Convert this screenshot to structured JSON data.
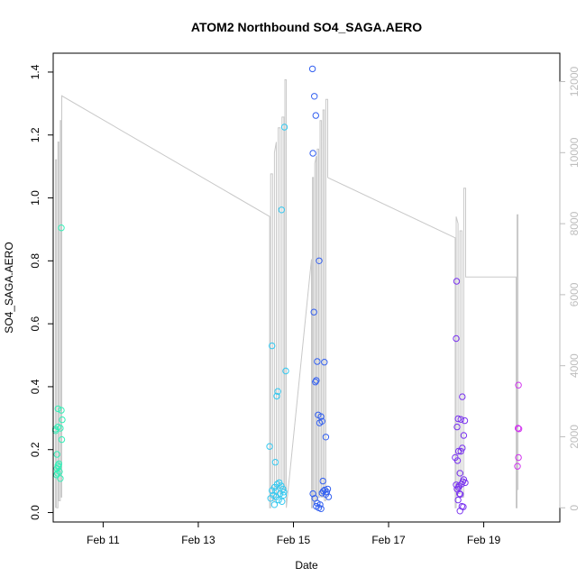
{
  "chart_data": {
    "type": "scatter",
    "title": "ATOM2 Northbound SO4_SAGA.AERO",
    "xlabel": "Date",
    "ylabel": "SO4_SAGA.AERO",
    "x_ticks": [
      "Feb 11",
      "Feb 13",
      "Feb 15",
      "Feb 17",
      "Feb 19"
    ],
    "x_tick_values": [
      10.0,
      12.0,
      14.0,
      16.0,
      18.0
    ],
    "xlim": [
      8.95,
      19.6
    ],
    "ylim": [
      -0.03,
      1.46
    ],
    "y_ticks": [
      0.0,
      0.2,
      0.4,
      0.6,
      0.8,
      1.0,
      1.2,
      1.4
    ],
    "y_tick_labels": [
      "0.0",
      "0.2",
      "0.4",
      "0.6",
      "0.8",
      "1.0",
      "1.2",
      "1.4"
    ],
    "y2lim": [
      -400,
      12800
    ],
    "y2_ticks": [
      0,
      2000,
      4000,
      6000,
      8000,
      10000,
      12000
    ],
    "y2_tick_labels": [
      "0",
      "2000",
      "4000",
      "6000",
      "8000",
      "10000",
      "12000"
    ],
    "grid": false,
    "series": [
      {
        "color": "#33f0b8",
        "points": [
          [
            9.12,
            0.905
          ],
          [
            9.05,
            0.33
          ],
          [
            9.12,
            0.325
          ],
          [
            9.0,
            0.265
          ],
          [
            9.05,
            0.272
          ],
          [
            9.1,
            0.268
          ],
          [
            9.14,
            0.295
          ],
          [
            9.13,
            0.232
          ],
          [
            9.03,
            0.185
          ],
          [
            9.0,
            0.26
          ],
          [
            9.05,
            0.15
          ],
          [
            9.03,
            0.14
          ],
          [
            9.06,
            0.145
          ],
          [
            9.04,
            0.125
          ],
          [
            9.08,
            0.13
          ],
          [
            9.02,
            0.12
          ],
          [
            9.1,
            0.108
          ],
          [
            9.07,
            0.155
          ]
        ]
      },
      {
        "color": "#33c8f0",
        "points": [
          [
            13.81,
            1.225
          ],
          [
            13.75,
            0.962
          ],
          [
            13.55,
            0.53
          ],
          [
            13.84,
            0.45
          ],
          [
            13.67,
            0.385
          ],
          [
            13.65,
            0.37
          ],
          [
            13.5,
            0.21
          ],
          [
            13.62,
            0.16
          ],
          [
            13.55,
            0.07
          ],
          [
            13.6,
            0.08
          ],
          [
            13.66,
            0.09
          ],
          [
            13.7,
            0.095
          ],
          [
            13.74,
            0.085
          ],
          [
            13.78,
            0.075
          ],
          [
            13.8,
            0.065
          ],
          [
            13.58,
            0.055
          ],
          [
            13.64,
            0.05
          ],
          [
            13.52,
            0.045
          ],
          [
            13.69,
            0.04
          ],
          [
            13.72,
            0.06
          ],
          [
            13.76,
            0.035
          ],
          [
            13.6,
            0.025
          ],
          [
            13.79,
            0.055
          ],
          [
            13.63,
            0.068
          ]
        ]
      },
      {
        "color": "#3360f0",
        "points": [
          [
            14.4,
            1.41
          ],
          [
            14.44,
            1.323
          ],
          [
            14.47,
            1.262
          ],
          [
            14.41,
            1.142
          ],
          [
            14.54,
            0.8
          ],
          [
            14.43,
            0.637
          ],
          [
            14.5,
            0.48
          ],
          [
            14.65,
            0.478
          ],
          [
            14.48,
            0.42
          ],
          [
            14.46,
            0.415
          ],
          [
            14.52,
            0.31
          ],
          [
            14.58,
            0.305
          ],
          [
            14.6,
            0.29
          ],
          [
            14.55,
            0.285
          ],
          [
            14.68,
            0.24
          ],
          [
            14.62,
            0.1
          ],
          [
            14.41,
            0.06
          ],
          [
            14.45,
            0.045
          ],
          [
            14.5,
            0.03
          ],
          [
            14.56,
            0.025
          ],
          [
            14.6,
            0.062
          ],
          [
            14.63,
            0.068
          ],
          [
            14.66,
            0.072
          ],
          [
            14.7,
            0.065
          ],
          [
            14.72,
            0.075
          ],
          [
            14.74,
            0.05
          ],
          [
            14.68,
            0.058
          ],
          [
            14.53,
            0.015
          ],
          [
            14.48,
            0.02
          ],
          [
            14.58,
            0.012
          ]
        ]
      },
      {
        "color": "#7a33f0",
        "points": [
          [
            17.43,
            0.735
          ],
          [
            17.42,
            0.553
          ],
          [
            17.55,
            0.368
          ],
          [
            17.46,
            0.298
          ],
          [
            17.52,
            0.296
          ],
          [
            17.6,
            0.292
          ],
          [
            17.44,
            0.272
          ],
          [
            17.58,
            0.245
          ],
          [
            17.55,
            0.205
          ],
          [
            17.47,
            0.195
          ],
          [
            17.52,
            0.195
          ],
          [
            17.4,
            0.175
          ],
          [
            17.45,
            0.165
          ],
          [
            17.5,
            0.125
          ],
          [
            17.58,
            0.105
          ],
          [
            17.61,
            0.095
          ],
          [
            17.56,
            0.098
          ],
          [
            17.42,
            0.088
          ],
          [
            17.48,
            0.085
          ],
          [
            17.53,
            0.09
          ],
          [
            17.44,
            0.075
          ],
          [
            17.49,
            0.06
          ],
          [
            17.51,
            0.058
          ],
          [
            17.46,
            0.04
          ],
          [
            17.54,
            0.02
          ],
          [
            17.57,
            0.018
          ],
          [
            17.5,
            0.005
          ],
          [
            17.47,
            0.08
          ]
        ]
      },
      {
        "color": "#d233f0",
        "points": [
          [
            18.73,
            0.405
          ],
          [
            18.72,
            0.268
          ],
          [
            18.74,
            0.266
          ],
          [
            18.73,
            0.175
          ],
          [
            18.71,
            0.147
          ]
        ]
      }
    ],
    "line2": {
      "color": "#c8c8c8",
      "points": [
        [
          9.0,
          0
        ],
        [
          9.0,
          9800
        ],
        [
          9.02,
          9800
        ],
        [
          9.02,
          0
        ],
        [
          9.05,
          0
        ],
        [
          9.05,
          10300
        ],
        [
          9.07,
          10300
        ],
        [
          9.07,
          200
        ],
        [
          9.1,
          200
        ],
        [
          9.1,
          10900
        ],
        [
          9.12,
          10900
        ],
        [
          9.12,
          300
        ],
        [
          9.13,
          300
        ],
        [
          9.13,
          11600
        ],
        [
          13.5,
          8200
        ],
        [
          13.5,
          0
        ],
        [
          13.52,
          0
        ],
        [
          13.52,
          9400
        ],
        [
          13.56,
          9400
        ],
        [
          13.56,
          200
        ],
        [
          13.6,
          200
        ],
        [
          13.6,
          10000
        ],
        [
          13.64,
          10300
        ],
        [
          13.64,
          300
        ],
        [
          13.68,
          300
        ],
        [
          13.68,
          10700
        ],
        [
          13.72,
          10700
        ],
        [
          13.72,
          400
        ],
        [
          13.76,
          400
        ],
        [
          13.76,
          11000
        ],
        [
          13.8,
          11000
        ],
        [
          13.8,
          500
        ],
        [
          13.82,
          500
        ],
        [
          13.82,
          12050
        ],
        [
          13.85,
          12050
        ],
        [
          13.85,
          0
        ],
        [
          14.38,
          7000
        ],
        [
          14.38,
          0
        ],
        [
          14.4,
          0
        ],
        [
          14.4,
          9300
        ],
        [
          14.42,
          9300
        ],
        [
          14.42,
          100
        ],
        [
          14.45,
          100
        ],
        [
          14.45,
          9700
        ],
        [
          14.48,
          9900
        ],
        [
          14.48,
          200
        ],
        [
          14.5,
          200
        ],
        [
          14.5,
          10100
        ],
        [
          14.53,
          10100
        ],
        [
          14.53,
          300
        ],
        [
          14.56,
          300
        ],
        [
          14.56,
          10900
        ],
        [
          14.59,
          10900
        ],
        [
          14.59,
          300
        ],
        [
          14.62,
          300
        ],
        [
          14.62,
          11200
        ],
        [
          14.65,
          11200
        ],
        [
          14.65,
          200
        ],
        [
          14.68,
          200
        ],
        [
          14.68,
          11500
        ],
        [
          14.72,
          11500
        ],
        [
          14.72,
          9300
        ],
        [
          17.4,
          7600
        ],
        [
          17.4,
          0
        ],
        [
          17.42,
          0
        ],
        [
          17.42,
          8200
        ],
        [
          17.46,
          8000
        ],
        [
          17.46,
          400
        ],
        [
          17.5,
          400
        ],
        [
          17.5,
          7800
        ],
        [
          17.54,
          7800
        ],
        [
          17.54,
          300
        ],
        [
          17.58,
          300
        ],
        [
          17.58,
          9000
        ],
        [
          17.62,
          9000
        ],
        [
          17.62,
          6500
        ],
        [
          18.68,
          6500
        ],
        [
          18.68,
          0
        ],
        [
          18.7,
          0
        ],
        [
          18.7,
          8250
        ],
        [
          18.72,
          8250
        ],
        [
          18.72,
          500
        ]
      ]
    }
  }
}
